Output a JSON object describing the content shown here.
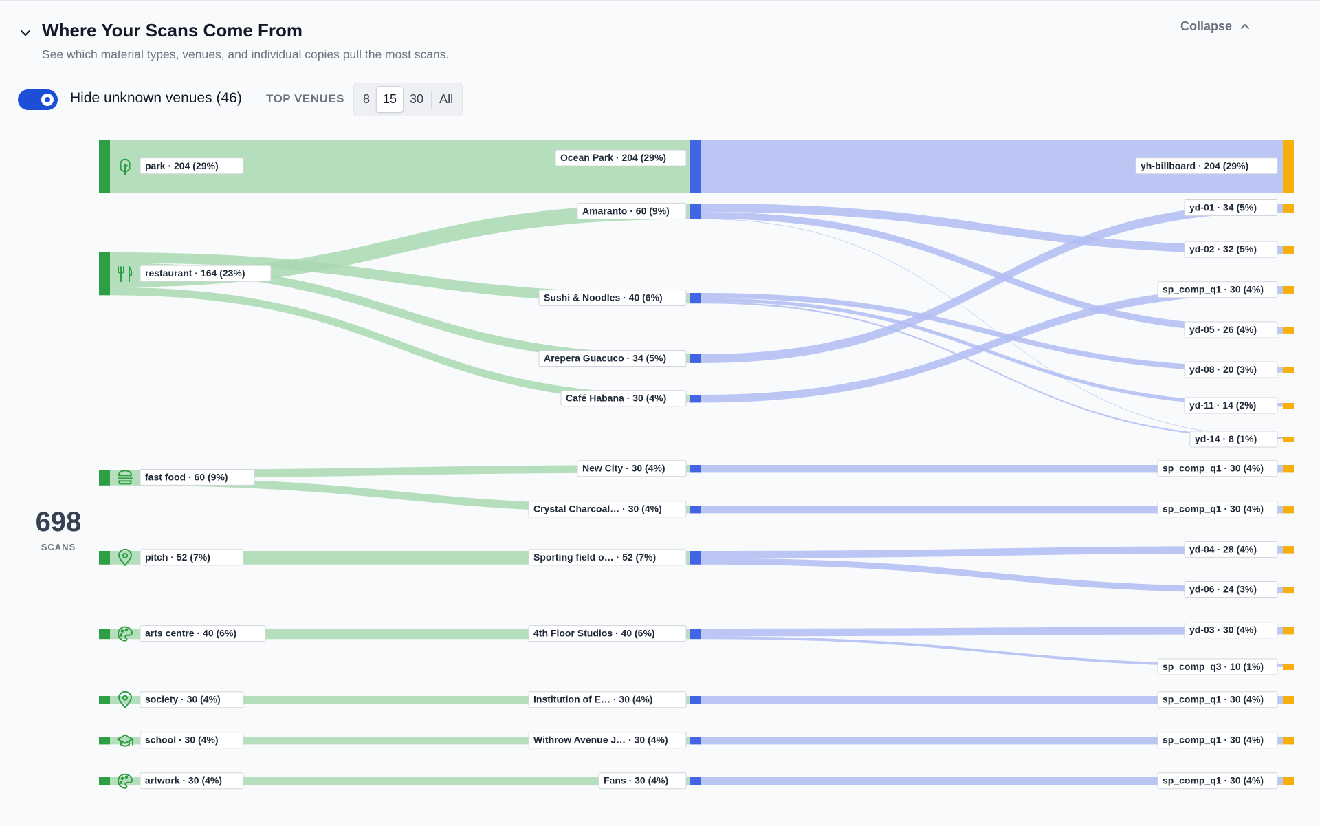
{
  "header": {
    "title": "Where Your Scans Come From",
    "subtitle": "See which material types, venues, and individual copies pull the most scans.",
    "collapse_label": "Collapse"
  },
  "controls": {
    "toggle_label": "Hide unknown venues (46)",
    "toggle_on": true,
    "top_venues_label": "TOP VENUES",
    "top_options": [
      "8",
      "15",
      "30",
      "All"
    ],
    "top_selected": "15"
  },
  "total": {
    "value": "698",
    "label": "SCANS"
  },
  "colors": {
    "left": "#2e9e44",
    "mid": "#4464e6",
    "right": "#f8ae0b",
    "left_flow": "#a9d8b1",
    "right_flow": "#b0bcf3"
  },
  "chart_data": {
    "type": "sankey",
    "categories": [
      {
        "label": "park · 204 (29%)",
        "icon": "tree-icon"
      },
      {
        "label": "restaurant · 164 (23%)",
        "icon": "fork-knife-icon"
      },
      {
        "label": "fast food · 60 (9%)",
        "icon": "burger-icon"
      },
      {
        "label": "pitch · 52 (7%)",
        "icon": "map-pin-icon"
      },
      {
        "label": "arts centre · 40 (6%)",
        "icon": "palette-icon"
      },
      {
        "label": "society · 30 (4%)",
        "icon": "map-pin-icon"
      },
      {
        "label": "school · 30 (4%)",
        "icon": "graduation-cap-icon"
      },
      {
        "label": "artwork · 30 (4%)",
        "icon": "palette-icon"
      }
    ],
    "venues": [
      {
        "label": "Ocean Park · 204 (29%)"
      },
      {
        "label": "Amaranto · 60 (9%)"
      },
      {
        "label": "Sushi & Noodles · 40 (6%)"
      },
      {
        "label": "Arepera Guacuco · 34 (5%)"
      },
      {
        "label": "Café Habana · 30 (4%)"
      },
      {
        "label": "New City · 30 (4%)"
      },
      {
        "label": "Crystal Charcoal… · 30 (4%)"
      },
      {
        "label": "Sporting field o… · 52 (7%)"
      },
      {
        "label": "4th Floor Studios · 40 (6%)"
      },
      {
        "label": "Institution of E… · 30 (4%)"
      },
      {
        "label": "Withrow Avenue J… · 30 (4%)"
      },
      {
        "label": "Fans · 30 (4%)"
      }
    ],
    "copies": [
      {
        "label": "yh-billboard · 204 (29%)"
      },
      {
        "label": "yd-01 · 34 (5%)"
      },
      {
        "label": "yd-02 · 32 (5%)"
      },
      {
        "label": "sp_comp_q1 · 30 (4%)"
      },
      {
        "label": "yd-05 · 26 (4%)"
      },
      {
        "label": "yd-08 · 20 (3%)"
      },
      {
        "label": "yd-11 · 14 (2%)"
      },
      {
        "label": "yd-14 · 8 (1%)"
      },
      {
        "label": "sp_comp_q1 · 30 (4%)"
      },
      {
        "label": "sp_comp_q1 · 30 (4%)"
      },
      {
        "label": "yd-04 · 28 (4%)"
      },
      {
        "label": "yd-06 · 24 (3%)"
      },
      {
        "label": "yd-03 · 30 (4%)"
      },
      {
        "label": "sp_comp_q3 · 10 (1%)"
      },
      {
        "label": "sp_comp_q1 · 30 (4%)"
      },
      {
        "label": "sp_comp_q1 · 30 (4%)"
      },
      {
        "label": "sp_comp_q1 · 30 (4%)"
      }
    ],
    "links_left": [
      {
        "source": 0,
        "target": 0,
        "value": 204
      },
      {
        "source": 1,
        "target": 2,
        "value": 40
      },
      {
        "source": 1,
        "target": 3,
        "value": 34
      },
      {
        "source": 1,
        "target": 1,
        "value": 60
      },
      {
        "source": 1,
        "target": 4,
        "value": 30
      },
      {
        "source": 2,
        "target": 5,
        "value": 30
      },
      {
        "source": 2,
        "target": 6,
        "value": 30
      },
      {
        "source": 3,
        "target": 7,
        "value": 52
      },
      {
        "source": 4,
        "target": 8,
        "value": 40
      },
      {
        "source": 5,
        "target": 9,
        "value": 30
      },
      {
        "source": 6,
        "target": 10,
        "value": 30
      },
      {
        "source": 7,
        "target": 11,
        "value": 30
      }
    ],
    "links_right": [
      {
        "source": 0,
        "target": 0,
        "value": 204
      },
      {
        "source": 1,
        "target": 2,
        "value": 32
      },
      {
        "source": 1,
        "target": 4,
        "value": 26
      },
      {
        "source": 1,
        "target": 7,
        "value": 2
      },
      {
        "source": 2,
        "target": 5,
        "value": 20
      },
      {
        "source": 2,
        "target": 6,
        "value": 14
      },
      {
        "source": 2,
        "target": 7,
        "value": 6
      },
      {
        "source": 3,
        "target": 1,
        "value": 34
      },
      {
        "source": 4,
        "target": 3,
        "value": 30
      },
      {
        "source": 5,
        "target": 8,
        "value": 30
      },
      {
        "source": 6,
        "target": 9,
        "value": 30
      },
      {
        "source": 7,
        "target": 10,
        "value": 28
      },
      {
        "source": 7,
        "target": 11,
        "value": 24
      },
      {
        "source": 8,
        "target": 12,
        "value": 30
      },
      {
        "source": 8,
        "target": 13,
        "value": 10
      },
      {
        "source": 9,
        "target": 14,
        "value": 30
      },
      {
        "source": 10,
        "target": 15,
        "value": 30
      },
      {
        "source": 11,
        "target": 16,
        "value": 30
      }
    ]
  }
}
